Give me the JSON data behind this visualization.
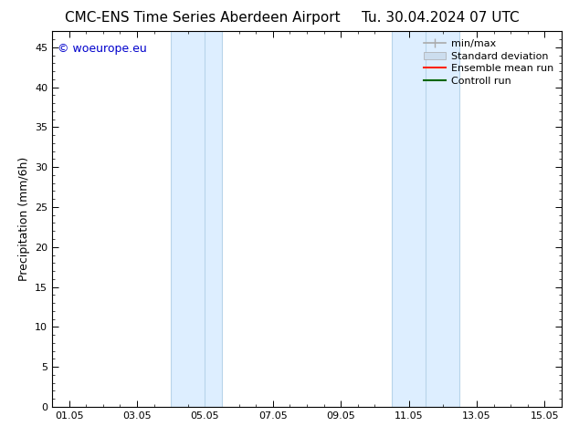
{
  "title_left": "CMC-ENS Time Series Aberdeen Airport",
  "title_right": "Tu. 30.04.2024 07 UTC",
  "ylabel": "Precipitation (mm/6h)",
  "ylim": [
    0,
    47
  ],
  "yticks": [
    0,
    5,
    10,
    15,
    20,
    25,
    30,
    35,
    40,
    45
  ],
  "xmin": 0.5,
  "xmax": 15.5,
  "xtick_labels": [
    "01.05",
    "03.05",
    "05.05",
    "07.05",
    "09.05",
    "11.05",
    "13.05",
    "15.05"
  ],
  "xtick_positions": [
    1.0,
    3.0,
    5.0,
    7.0,
    9.0,
    11.0,
    13.0,
    15.0
  ],
  "shaded_regions": [
    {
      "xstart": 4.0,
      "xend": 5.5,
      "color": "#ddeeff"
    },
    {
      "xstart": 10.5,
      "xend": 12.5,
      "color": "#ddeeff"
    }
  ],
  "vline_positions": [
    4.0,
    5.0,
    5.5,
    10.5,
    11.5,
    12.5
  ],
  "vline_color": "#b8d4ea",
  "watermark_text": "© woeurope.eu",
  "watermark_color": "#0000cc",
  "legend_entries": [
    {
      "label": "min/max",
      "color": "#aaaaaa",
      "lw": 1.2,
      "style": "minmax"
    },
    {
      "label": "Standard deviation",
      "color": "#ccddee",
      "lw": 8,
      "style": "thick"
    },
    {
      "label": "Ensemble mean run",
      "color": "#ff2200",
      "lw": 1.5,
      "style": "line"
    },
    {
      "label": "Controll run",
      "color": "#006600",
      "lw": 1.5,
      "style": "line"
    }
  ],
  "bg_color": "#ffffff",
  "title_fontsize": 11,
  "tick_fontsize": 8,
  "ylabel_fontsize": 9,
  "legend_fontsize": 8,
  "watermark_fontsize": 9
}
